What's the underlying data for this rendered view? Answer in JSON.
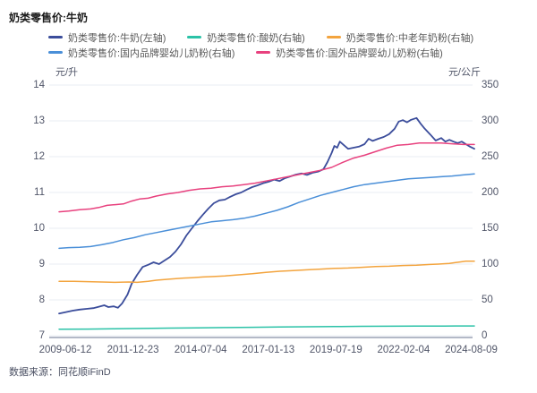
{
  "title": "奶类零售价:牛奶",
  "footer": {
    "source": "数据来源：同花顺iFinD"
  },
  "colors": {
    "milk": "#3b4d9b",
    "yogurt": "#2bc2a7",
    "middle_aged_powder": "#f3a43e",
    "domestic_infant_powder": "#4a8fd8",
    "foreign_infant_powder": "#e8417e",
    "gridline": "#e9ecf3",
    "axis_line": "#b3b9c7",
    "tick_text": "#515669",
    "legend_text": "#595959",
    "title_text": "#1a1a1a"
  },
  "chart_data": {
    "type": "line",
    "title": "奶类零售价:牛奶",
    "x_unit": "decimal_year",
    "x_range": [
      2009.45,
      2024.61
    ],
    "x_tick_labels": [
      "2009-06-12",
      "2011-12-23",
      "2014-07-04",
      "2017-01-13",
      "2019-07-19",
      "2022-02-04",
      "2024-08-09"
    ],
    "grid": true,
    "legend_position": "top",
    "left_axis": {
      "label": "元/升",
      "min": 7,
      "max": 14,
      "ticks": [
        14,
        13,
        12,
        11,
        10,
        9,
        8,
        7
      ]
    },
    "right_axis": {
      "label": "元/公斤",
      "min": 0,
      "max": 350,
      "ticks": [
        350,
        300,
        250,
        200,
        150,
        100,
        50,
        0
      ]
    },
    "series": [
      {
        "name": "奶类零售价:牛奶(左轴)",
        "axis": "left",
        "color": "#3b4d9b",
        "width": 1.8,
        "points": [
          [
            2009.45,
            7.62
          ],
          [
            2009.7,
            7.66
          ],
          [
            2009.95,
            7.7
          ],
          [
            2010.2,
            7.73
          ],
          [
            2010.45,
            7.75
          ],
          [
            2010.7,
            7.77
          ],
          [
            2010.95,
            7.82
          ],
          [
            2011.1,
            7.85
          ],
          [
            2011.25,
            7.8
          ],
          [
            2011.45,
            7.82
          ],
          [
            2011.6,
            7.78
          ],
          [
            2011.75,
            7.9
          ],
          [
            2011.95,
            8.15
          ],
          [
            2012.1,
            8.45
          ],
          [
            2012.3,
            8.7
          ],
          [
            2012.5,
            8.92
          ],
          [
            2012.7,
            8.98
          ],
          [
            2012.9,
            9.05
          ],
          [
            2013.1,
            9.0
          ],
          [
            2013.3,
            9.1
          ],
          [
            2013.5,
            9.2
          ],
          [
            2013.7,
            9.35
          ],
          [
            2013.9,
            9.55
          ],
          [
            2014.1,
            9.8
          ],
          [
            2014.3,
            10.0
          ],
          [
            2014.5,
            10.2
          ],
          [
            2014.7,
            10.38
          ],
          [
            2014.9,
            10.55
          ],
          [
            2015.1,
            10.7
          ],
          [
            2015.3,
            10.78
          ],
          [
            2015.5,
            10.8
          ],
          [
            2015.7,
            10.88
          ],
          [
            2015.9,
            10.95
          ],
          [
            2016.1,
            11.0
          ],
          [
            2016.3,
            11.08
          ],
          [
            2016.5,
            11.15
          ],
          [
            2016.7,
            11.2
          ],
          [
            2016.9,
            11.26
          ],
          [
            2017.1,
            11.3
          ],
          [
            2017.3,
            11.36
          ],
          [
            2017.5,
            11.32
          ],
          [
            2017.7,
            11.4
          ],
          [
            2017.9,
            11.45
          ],
          [
            2018.1,
            11.5
          ],
          [
            2018.3,
            11.53
          ],
          [
            2018.5,
            11.49
          ],
          [
            2018.7,
            11.55
          ],
          [
            2018.9,
            11.58
          ],
          [
            2019.1,
            11.65
          ],
          [
            2019.25,
            11.85
          ],
          [
            2019.4,
            12.1
          ],
          [
            2019.5,
            12.3
          ],
          [
            2019.6,
            12.25
          ],
          [
            2019.7,
            12.42
          ],
          [
            2019.85,
            12.32
          ],
          [
            2020.0,
            12.22
          ],
          [
            2020.2,
            12.25
          ],
          [
            2020.4,
            12.28
          ],
          [
            2020.6,
            12.35
          ],
          [
            2020.75,
            12.5
          ],
          [
            2020.9,
            12.44
          ],
          [
            2021.1,
            12.5
          ],
          [
            2021.3,
            12.55
          ],
          [
            2021.5,
            12.63
          ],
          [
            2021.7,
            12.78
          ],
          [
            2021.85,
            12.98
          ],
          [
            2022.0,
            13.02
          ],
          [
            2022.15,
            12.96
          ],
          [
            2022.3,
            13.03
          ],
          [
            2022.5,
            13.08
          ],
          [
            2022.65,
            12.92
          ],
          [
            2022.8,
            12.78
          ],
          [
            2023.0,
            12.62
          ],
          [
            2023.2,
            12.45
          ],
          [
            2023.4,
            12.52
          ],
          [
            2023.55,
            12.42
          ],
          [
            2023.7,
            12.47
          ],
          [
            2023.85,
            12.42
          ],
          [
            2024.0,
            12.38
          ],
          [
            2024.15,
            12.42
          ],
          [
            2024.3,
            12.35
          ],
          [
            2024.45,
            12.28
          ],
          [
            2024.61,
            12.22
          ]
        ]
      },
      {
        "name": "奶类零售价:酸奶(右轴)",
        "axis": "right",
        "color": "#2bc2a7",
        "width": 1.5,
        "points": [
          [
            2009.45,
            9.0
          ],
          [
            2010.5,
            9.2
          ],
          [
            2011.5,
            9.6
          ],
          [
            2012.5,
            10.1
          ],
          [
            2013.5,
            10.6
          ],
          [
            2014.5,
            11.0
          ],
          [
            2015.5,
            11.4
          ],
          [
            2016.5,
            11.8
          ],
          [
            2017.5,
            12.2
          ],
          [
            2018.5,
            12.5
          ],
          [
            2019.5,
            12.8
          ],
          [
            2020.5,
            13.1
          ],
          [
            2021.5,
            13.3
          ],
          [
            2022.5,
            13.5
          ],
          [
            2023.5,
            13.5
          ],
          [
            2024.61,
            13.6
          ]
        ]
      },
      {
        "name": "奶类零售价:中老年奶粉(右轴)",
        "axis": "right",
        "color": "#f3a43e",
        "width": 1.5,
        "points": [
          [
            2009.45,
            76
          ],
          [
            2010.0,
            76
          ],
          [
            2010.5,
            75.5
          ],
          [
            2011.0,
            75
          ],
          [
            2011.5,
            74.5
          ],
          [
            2012.0,
            75
          ],
          [
            2012.3,
            74.5
          ],
          [
            2012.7,
            76
          ],
          [
            2013.0,
            77.5
          ],
          [
            2013.5,
            79
          ],
          [
            2014.0,
            80.5
          ],
          [
            2014.3,
            81
          ],
          [
            2014.7,
            82
          ],
          [
            2015.0,
            82.5
          ],
          [
            2015.5,
            83.5
          ],
          [
            2016.0,
            85
          ],
          [
            2016.5,
            86.5
          ],
          [
            2017.0,
            88.5
          ],
          [
            2017.5,
            90
          ],
          [
            2018.0,
            91
          ],
          [
            2018.5,
            92
          ],
          [
            2019.0,
            93
          ],
          [
            2019.5,
            94
          ],
          [
            2020.0,
            94.5
          ],
          [
            2020.5,
            95.5
          ],
          [
            2021.0,
            96.5
          ],
          [
            2021.5,
            97
          ],
          [
            2022.0,
            98
          ],
          [
            2022.5,
            98.5
          ],
          [
            2023.0,
            99.5
          ],
          [
            2023.3,
            100
          ],
          [
            2023.7,
            101
          ],
          [
            2024.0,
            102.5
          ],
          [
            2024.3,
            104
          ],
          [
            2024.61,
            104
          ]
        ]
      },
      {
        "name": "奶类零售价:国内品牌婴幼儿奶粉(右轴)",
        "axis": "right",
        "color": "#4a8fd8",
        "width": 1.5,
        "points": [
          [
            2009.45,
            122
          ],
          [
            2009.8,
            123
          ],
          [
            2010.2,
            123.5
          ],
          [
            2010.6,
            124.5
          ],
          [
            2011.0,
            127
          ],
          [
            2011.4,
            130
          ],
          [
            2011.8,
            134
          ],
          [
            2012.2,
            137
          ],
          [
            2012.6,
            141
          ],
          [
            2013.0,
            144
          ],
          [
            2013.4,
            147
          ],
          [
            2013.8,
            150
          ],
          [
            2014.2,
            153
          ],
          [
            2014.6,
            156
          ],
          [
            2015.0,
            159
          ],
          [
            2015.4,
            160.5
          ],
          [
            2015.8,
            162
          ],
          [
            2016.2,
            164
          ],
          [
            2016.6,
            167
          ],
          [
            2017.0,
            171
          ],
          [
            2017.4,
            175
          ],
          [
            2017.8,
            180
          ],
          [
            2018.2,
            186
          ],
          [
            2018.6,
            191
          ],
          [
            2019.0,
            196
          ],
          [
            2019.4,
            200
          ],
          [
            2019.8,
            204
          ],
          [
            2020.2,
            208
          ],
          [
            2020.6,
            211
          ],
          [
            2021.0,
            213
          ],
          [
            2021.4,
            215
          ],
          [
            2021.8,
            217
          ],
          [
            2022.2,
            219
          ],
          [
            2022.6,
            220
          ],
          [
            2023.0,
            221
          ],
          [
            2023.4,
            222
          ],
          [
            2023.8,
            223
          ],
          [
            2024.2,
            224.5
          ],
          [
            2024.61,
            226
          ]
        ]
      },
      {
        "name": "奶类零售价:国外品牌婴幼儿奶粉(右轴)",
        "axis": "right",
        "color": "#e8417e",
        "width": 1.5,
        "points": [
          [
            2009.45,
            173
          ],
          [
            2009.8,
            174
          ],
          [
            2010.2,
            176
          ],
          [
            2010.6,
            177
          ],
          [
            2010.9,
            179
          ],
          [
            2011.2,
            182
          ],
          [
            2011.5,
            183
          ],
          [
            2011.8,
            184
          ],
          [
            2012.1,
            188
          ],
          [
            2012.4,
            191
          ],
          [
            2012.7,
            192
          ],
          [
            2013.0,
            195
          ],
          [
            2013.4,
            198
          ],
          [
            2013.8,
            200
          ],
          [
            2014.2,
            203
          ],
          [
            2014.6,
            205
          ],
          [
            2015.0,
            206
          ],
          [
            2015.4,
            208
          ],
          [
            2015.8,
            209
          ],
          [
            2016.2,
            211
          ],
          [
            2016.6,
            213
          ],
          [
            2017.0,
            216
          ],
          [
            2017.4,
            219
          ],
          [
            2017.8,
            222
          ],
          [
            2018.2,
            225
          ],
          [
            2018.6,
            228
          ],
          [
            2019.0,
            231
          ],
          [
            2019.4,
            235
          ],
          [
            2019.8,
            242
          ],
          [
            2020.2,
            248
          ],
          [
            2020.6,
            252
          ],
          [
            2021.0,
            257
          ],
          [
            2021.4,
            262
          ],
          [
            2021.8,
            266
          ],
          [
            2022.2,
            267
          ],
          [
            2022.6,
            269
          ],
          [
            2023.0,
            269
          ],
          [
            2023.4,
            269
          ],
          [
            2023.8,
            268
          ],
          [
            2024.2,
            267
          ],
          [
            2024.61,
            267
          ]
        ]
      }
    ]
  }
}
